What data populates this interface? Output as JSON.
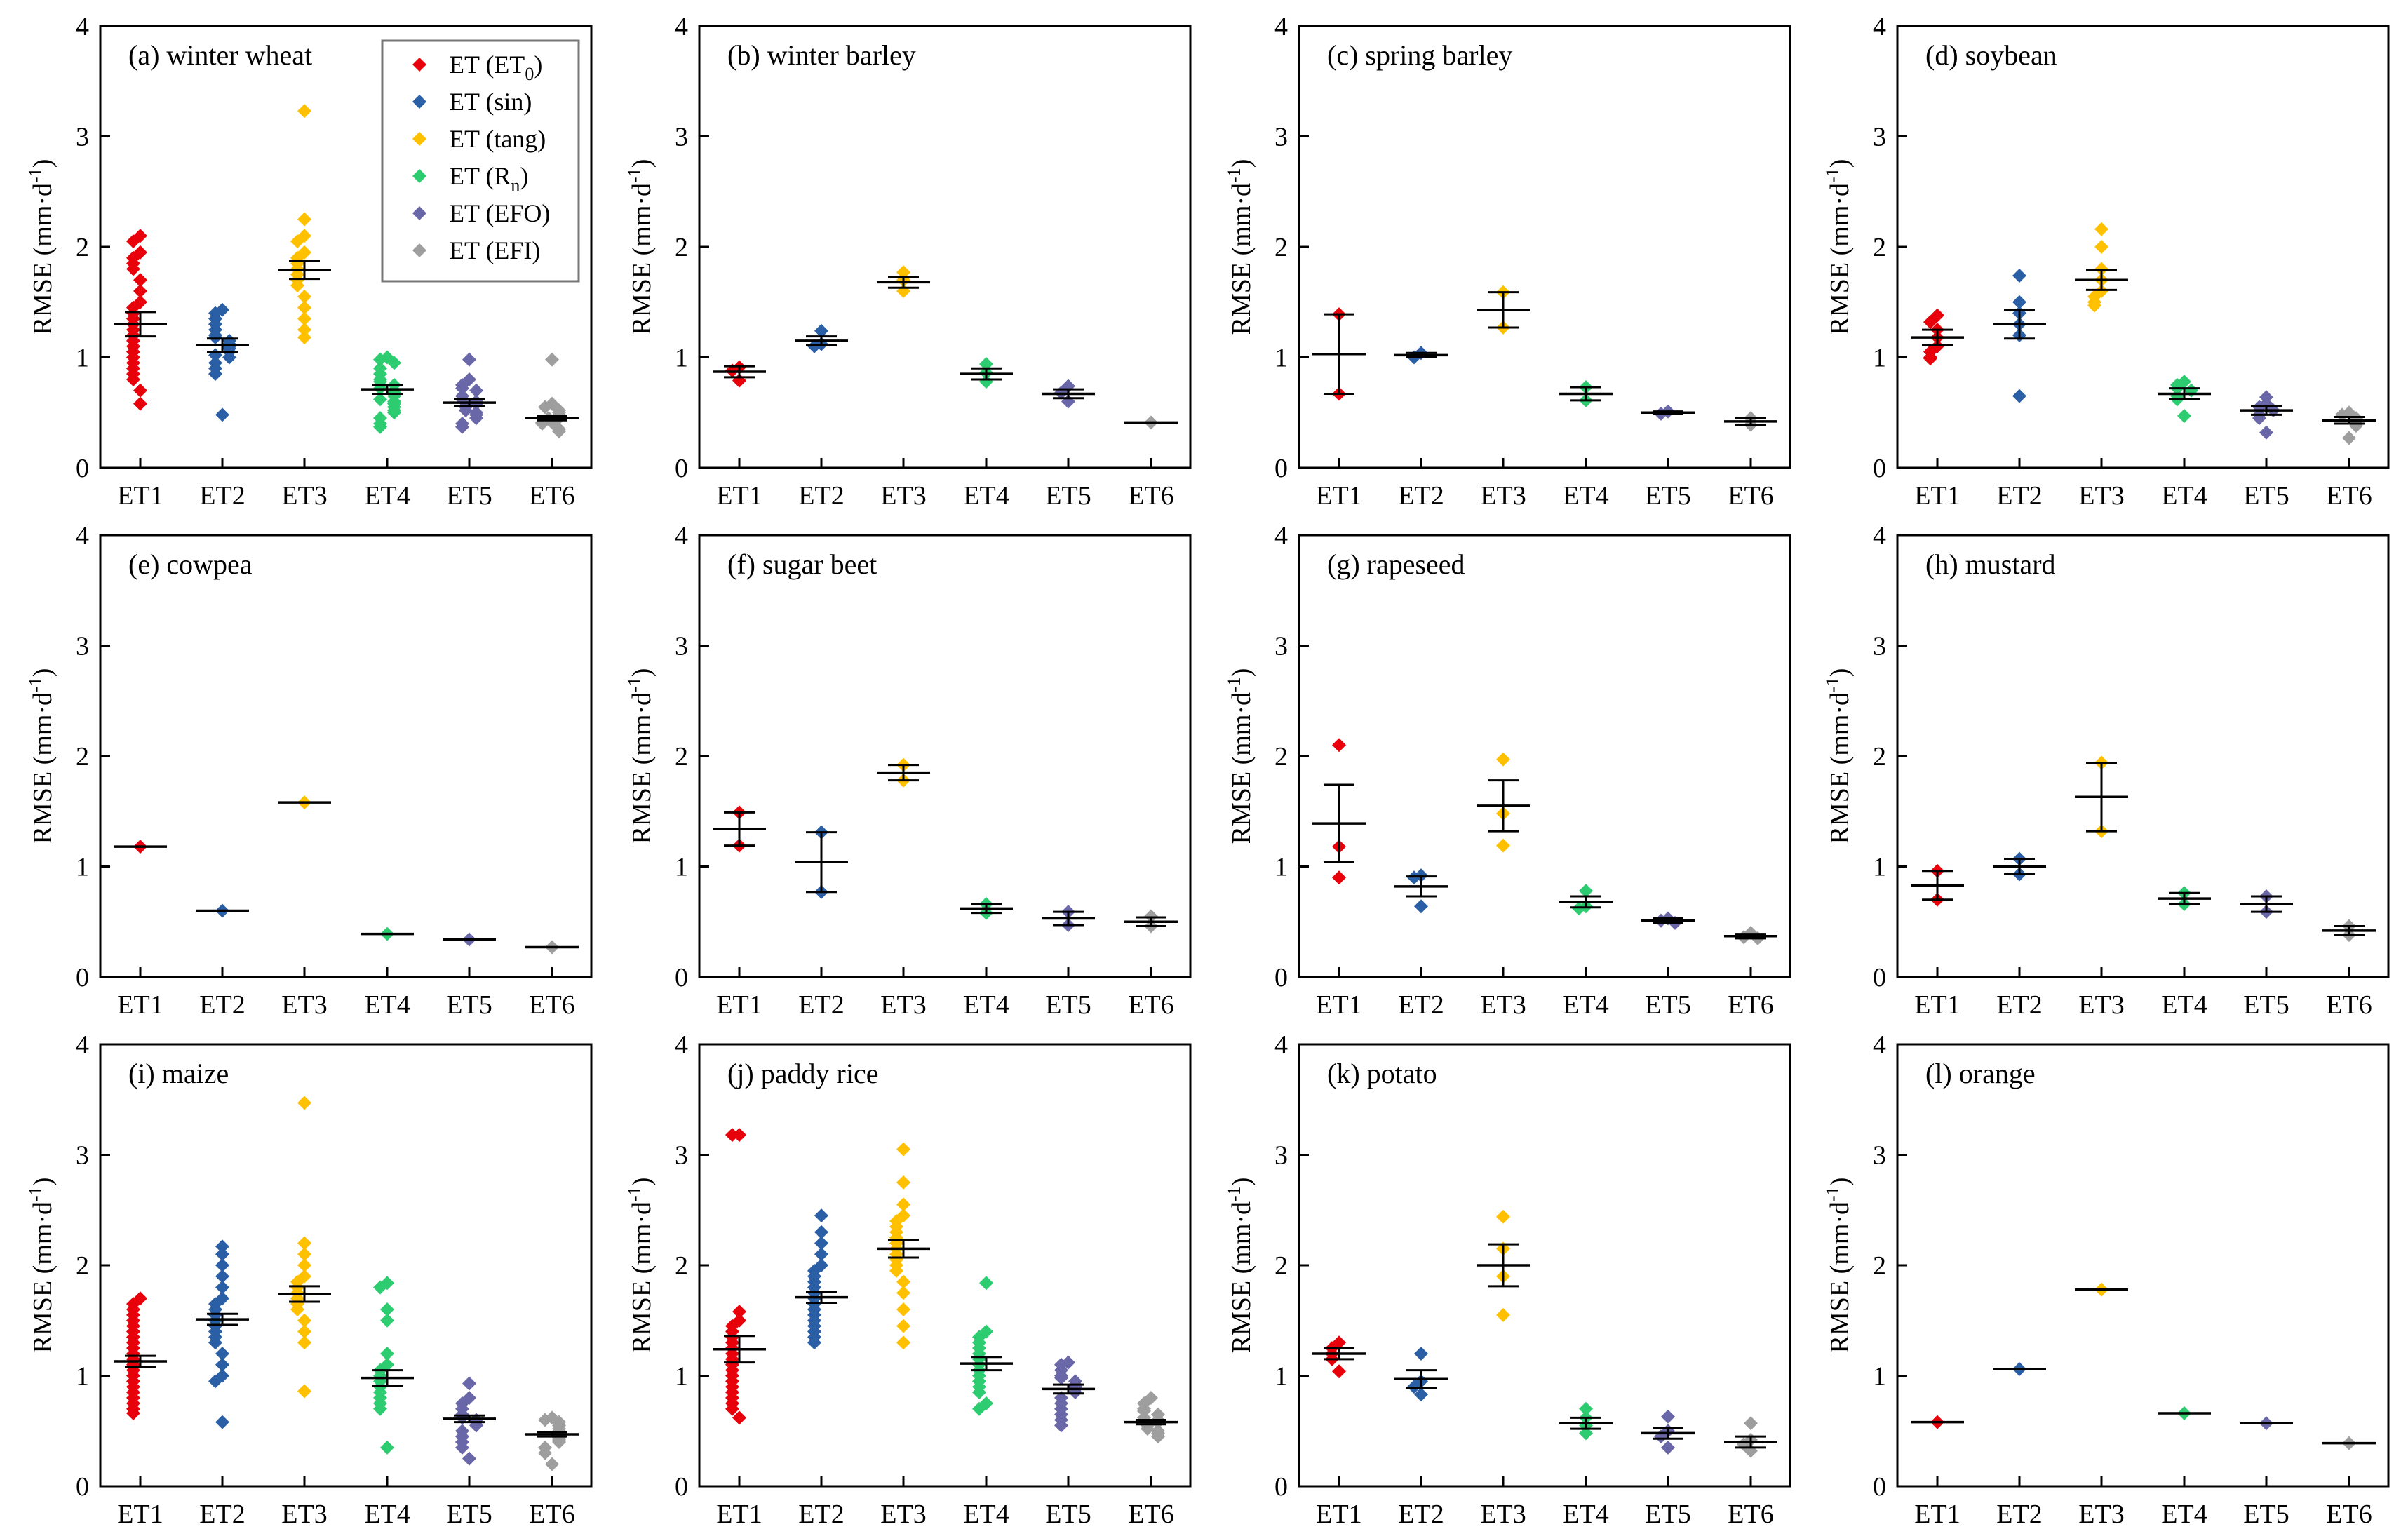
{
  "figure": {
    "ylabel": "RMSE (mm·d",
    "ylabel_sup": "-1",
    "ylabel_end": ")",
    "yticks": [
      "0",
      "1",
      "2",
      "3",
      "4"
    ],
    "categories": [
      "ET1",
      "ET2",
      "ET3",
      "ET4",
      "ET5",
      "ET6"
    ]
  },
  "legend": {
    "items": [
      {
        "label": "ET (ET",
        "sub": "0",
        "tail": ")",
        "color": "#e8000b"
      },
      {
        "label": "ET (sin)",
        "sub": "",
        "tail": "",
        "color": "#2a5fa5"
      },
      {
        "label": "ET (tang)",
        "sub": "",
        "tail": "",
        "color": "#ffc000"
      },
      {
        "label": "ET (R",
        "sub": "n",
        "tail": ")",
        "color": "#2ecc71"
      },
      {
        "label": "ET (EFO)",
        "sub": "",
        "tail": "",
        "color": "#6a67a8"
      },
      {
        "label": "ET (EFI)",
        "sub": "",
        "tail": "",
        "color": "#9e9e9e"
      }
    ]
  },
  "chart_data": [
    {
      "type": "scatter",
      "title": "(a) winter wheat",
      "ylim": [
        0,
        4
      ],
      "series": [
        {
          "name": "ET1",
          "mean": 1.3,
          "se": 0.11,
          "values": [
            2.1,
            2.05,
            1.95,
            1.9,
            1.85,
            1.8,
            1.7,
            1.6,
            1.5,
            1.45,
            1.4,
            1.35,
            1.3,
            1.25,
            1.2,
            1.15,
            1.1,
            1.05,
            1.0,
            0.95,
            0.9,
            0.85,
            0.8,
            0.7,
            0.58
          ]
        },
        {
          "name": "ET2",
          "mean": 1.11,
          "se": 0.06,
          "values": [
            1.43,
            1.4,
            1.35,
            1.3,
            1.25,
            1.2,
            1.18,
            1.15,
            1.12,
            1.1,
            1.08,
            1.05,
            1.02,
            1.0,
            0.95,
            0.9,
            0.85,
            0.48
          ]
        },
        {
          "name": "ET3",
          "mean": 1.79,
          "se": 0.08,
          "values": [
            3.23,
            2.25,
            2.1,
            2.05,
            1.95,
            1.9,
            1.85,
            1.8,
            1.75,
            1.7,
            1.65,
            1.55,
            1.45,
            1.35,
            1.25,
            1.18
          ]
        },
        {
          "name": "ET4",
          "mean": 0.71,
          "se": 0.04,
          "values": [
            1.0,
            0.98,
            0.95,
            0.9,
            0.85,
            0.8,
            0.78,
            0.75,
            0.72,
            0.7,
            0.68,
            0.65,
            0.62,
            0.6,
            0.58,
            0.55,
            0.52,
            0.5,
            0.45,
            0.4,
            0.37
          ]
        },
        {
          "name": "ET5",
          "mean": 0.59,
          "se": 0.03,
          "values": [
            0.98,
            0.8,
            0.75,
            0.72,
            0.7,
            0.65,
            0.62,
            0.6,
            0.58,
            0.56,
            0.55,
            0.52,
            0.5,
            0.48,
            0.45,
            0.4,
            0.37
          ]
        },
        {
          "name": "ET6",
          "mean": 0.45,
          "se": 0.02,
          "values": [
            0.98,
            0.58,
            0.55,
            0.52,
            0.5,
            0.48,
            0.46,
            0.45,
            0.44,
            0.43,
            0.42,
            0.41,
            0.4,
            0.38,
            0.35,
            0.33
          ]
        }
      ]
    },
    {
      "type": "scatter",
      "title": "(b) winter barley",
      "ylim": [
        0,
        4
      ],
      "series": [
        {
          "name": "ET1",
          "mean": 0.87,
          "se": 0.05,
          "values": [
            0.91,
            0.88,
            0.79
          ]
        },
        {
          "name": "ET2",
          "mean": 1.15,
          "se": 0.04,
          "values": [
            1.24,
            1.12,
            1.1
          ]
        },
        {
          "name": "ET3",
          "mean": 1.68,
          "se": 0.05,
          "values": [
            1.77,
            1.7,
            1.6
          ]
        },
        {
          "name": "ET4",
          "mean": 0.85,
          "se": 0.05,
          "values": [
            0.94,
            0.86,
            0.78
          ]
        },
        {
          "name": "ET5",
          "mean": 0.67,
          "se": 0.04,
          "values": [
            0.74,
            0.68,
            0.6
          ]
        },
        {
          "name": "ET6",
          "mean": 0.41,
          "se": 0.0,
          "values": [
            0.41
          ]
        }
      ]
    },
    {
      "type": "scatter",
      "title": "(c) spring barley",
      "ylim": [
        0,
        4
      ],
      "series": [
        {
          "name": "ET1",
          "mean": 1.03,
          "se": 0.36,
          "values": [
            1.39,
            0.67
          ]
        },
        {
          "name": "ET2",
          "mean": 1.02,
          "se": 0.02,
          "values": [
            1.04,
            1.0
          ]
        },
        {
          "name": "ET3",
          "mean": 1.43,
          "se": 0.16,
          "values": [
            1.59,
            1.27
          ]
        },
        {
          "name": "ET4",
          "mean": 0.67,
          "se": 0.06,
          "values": [
            0.73,
            0.61
          ]
        },
        {
          "name": "ET5",
          "mean": 0.5,
          "se": 0.01,
          "values": [
            0.51,
            0.49
          ]
        },
        {
          "name": "ET6",
          "mean": 0.42,
          "se": 0.03,
          "values": [
            0.45,
            0.39
          ]
        }
      ]
    },
    {
      "type": "scatter",
      "title": "(d) soybean",
      "ylim": [
        0,
        4
      ],
      "series": [
        {
          "name": "ET1",
          "mean": 1.18,
          "se": 0.07,
          "values": [
            1.38,
            1.32,
            1.25,
            1.18,
            1.1,
            1.05,
            1.0,
            0.99
          ]
        },
        {
          "name": "ET2",
          "mean": 1.3,
          "se": 0.13,
          "values": [
            1.74,
            1.5,
            1.4,
            1.3,
            1.2,
            0.65
          ]
        },
        {
          "name": "ET3",
          "mean": 1.7,
          "se": 0.09,
          "values": [
            2.16,
            2.0,
            1.8,
            1.7,
            1.6,
            1.55,
            1.5,
            1.47
          ]
        },
        {
          "name": "ET4",
          "mean": 0.67,
          "se": 0.05,
          "values": [
            0.78,
            0.75,
            0.72,
            0.7,
            0.65,
            0.62,
            0.47
          ]
        },
        {
          "name": "ET5",
          "mean": 0.52,
          "se": 0.04,
          "values": [
            0.64,
            0.58,
            0.55,
            0.52,
            0.48,
            0.45,
            0.32
          ]
        },
        {
          "name": "ET6",
          "mean": 0.43,
          "se": 0.03,
          "values": [
            0.5,
            0.48,
            0.45,
            0.43,
            0.4,
            0.38,
            0.27
          ]
        }
      ]
    },
    {
      "type": "scatter",
      "title": "(e) cowpea",
      "ylim": [
        0,
        4
      ],
      "series": [
        {
          "name": "ET1",
          "mean": 1.18,
          "se": 0.0,
          "values": [
            1.18
          ]
        },
        {
          "name": "ET2",
          "mean": 0.6,
          "se": 0.0,
          "values": [
            0.6
          ]
        },
        {
          "name": "ET3",
          "mean": 1.58,
          "se": 0.0,
          "values": [
            1.58
          ]
        },
        {
          "name": "ET4",
          "mean": 0.39,
          "se": 0.0,
          "values": [
            0.39
          ]
        },
        {
          "name": "ET5",
          "mean": 0.34,
          "se": 0.0,
          "values": [
            0.34
          ]
        },
        {
          "name": "ET6",
          "mean": 0.27,
          "se": 0.0,
          "values": [
            0.27
          ]
        }
      ]
    },
    {
      "type": "scatter",
      "title": "(f) sugar beet",
      "ylim": [
        0,
        4
      ],
      "series": [
        {
          "name": "ET1",
          "mean": 1.34,
          "se": 0.15,
          "values": [
            1.49,
            1.19
          ]
        },
        {
          "name": "ET2",
          "mean": 1.04,
          "se": 0.27,
          "values": [
            1.31,
            0.77
          ]
        },
        {
          "name": "ET3",
          "mean": 1.85,
          "se": 0.07,
          "values": [
            1.92,
            1.78
          ]
        },
        {
          "name": "ET4",
          "mean": 0.62,
          "se": 0.04,
          "values": [
            0.66,
            0.58
          ]
        },
        {
          "name": "ET5",
          "mean": 0.53,
          "se": 0.06,
          "values": [
            0.59,
            0.47
          ]
        },
        {
          "name": "ET6",
          "mean": 0.5,
          "se": 0.04,
          "values": [
            0.55,
            0.46
          ]
        }
      ]
    },
    {
      "type": "scatter",
      "title": "(g) rapeseed",
      "ylim": [
        0,
        4
      ],
      "series": [
        {
          "name": "ET1",
          "mean": 1.39,
          "se": 0.35,
          "values": [
            2.1,
            1.18,
            0.9
          ]
        },
        {
          "name": "ET2",
          "mean": 0.82,
          "se": 0.09,
          "values": [
            0.92,
            0.9,
            0.64
          ]
        },
        {
          "name": "ET3",
          "mean": 1.55,
          "se": 0.23,
          "values": [
            1.97,
            1.48,
            1.19
          ]
        },
        {
          "name": "ET4",
          "mean": 0.68,
          "se": 0.05,
          "values": [
            0.78,
            0.64,
            0.62
          ]
        },
        {
          "name": "ET5",
          "mean": 0.51,
          "se": 0.02,
          "values": [
            0.53,
            0.51,
            0.49
          ]
        },
        {
          "name": "ET6",
          "mean": 0.37,
          "se": 0.02,
          "values": [
            0.4,
            0.36,
            0.35
          ]
        }
      ]
    },
    {
      "type": "scatter",
      "title": "(h) mustard",
      "ylim": [
        0,
        4
      ],
      "series": [
        {
          "name": "ET1",
          "mean": 0.83,
          "se": 0.13,
          "values": [
            0.96,
            0.7
          ]
        },
        {
          "name": "ET2",
          "mean": 1.0,
          "se": 0.07,
          "values": [
            1.07,
            0.93
          ]
        },
        {
          "name": "ET3",
          "mean": 1.63,
          "se": 0.31,
          "values": [
            1.94,
            1.32
          ]
        },
        {
          "name": "ET4",
          "mean": 0.71,
          "se": 0.05,
          "values": [
            0.76,
            0.66
          ]
        },
        {
          "name": "ET5",
          "mean": 0.66,
          "se": 0.07,
          "values": [
            0.73,
            0.59
          ]
        },
        {
          "name": "ET6",
          "mean": 0.42,
          "se": 0.04,
          "values": [
            0.46,
            0.38
          ]
        }
      ]
    },
    {
      "type": "scatter",
      "title": "(i) maize",
      "ylim": [
        0,
        4
      ],
      "series": [
        {
          "name": "ET1",
          "mean": 1.13,
          "se": 0.05,
          "values": [
            1.7,
            1.65,
            1.6,
            1.55,
            1.5,
            1.45,
            1.4,
            1.35,
            1.3,
            1.25,
            1.2,
            1.15,
            1.1,
            1.05,
            1.0,
            0.95,
            0.9,
            0.85,
            0.8,
            0.75,
            0.7,
            0.66
          ]
        },
        {
          "name": "ET2",
          "mean": 1.51,
          "se": 0.05,
          "values": [
            2.17,
            2.1,
            2.0,
            1.9,
            1.8,
            1.7,
            1.65,
            1.6,
            1.55,
            1.5,
            1.45,
            1.4,
            1.35,
            1.3,
            1.2,
            1.1,
            1.0,
            0.95,
            0.58
          ]
        },
        {
          "name": "ET3",
          "mean": 1.74,
          "se": 0.07,
          "values": [
            3.47,
            2.2,
            2.1,
            2.0,
            1.9,
            1.85,
            1.8,
            1.75,
            1.7,
            1.65,
            1.6,
            1.5,
            1.4,
            1.3,
            0.86
          ]
        },
        {
          "name": "ET4",
          "mean": 0.98,
          "se": 0.07,
          "values": [
            1.84,
            1.8,
            1.6,
            1.5,
            1.2,
            1.1,
            1.05,
            1.0,
            0.95,
            0.9,
            0.85,
            0.8,
            0.75,
            0.7,
            0.35
          ]
        },
        {
          "name": "ET5",
          "mean": 0.61,
          "se": 0.03,
          "values": [
            0.93,
            0.8,
            0.75,
            0.7,
            0.65,
            0.62,
            0.6,
            0.58,
            0.55,
            0.5,
            0.45,
            0.4,
            0.35,
            0.25
          ]
        },
        {
          "name": "ET6",
          "mean": 0.47,
          "se": 0.02,
          "values": [
            0.62,
            0.6,
            0.58,
            0.55,
            0.52,
            0.5,
            0.48,
            0.46,
            0.44,
            0.42,
            0.4,
            0.35,
            0.3,
            0.2
          ]
        }
      ]
    },
    {
      "type": "scatter",
      "title": "(j) paddy rice",
      "ylim": [
        0,
        4
      ],
      "series": [
        {
          "name": "ET1",
          "mean": 1.24,
          "se": 0.12,
          "values": [
            3.18,
            3.18,
            1.58,
            1.5,
            1.45,
            1.4,
            1.35,
            1.3,
            1.25,
            1.2,
            1.15,
            1.1,
            1.05,
            1.0,
            0.95,
            0.9,
            0.85,
            0.8,
            0.75,
            0.7,
            0.62
          ]
        },
        {
          "name": "ET2",
          "mean": 1.71,
          "se": 0.05,
          "values": [
            2.45,
            2.3,
            2.2,
            2.1,
            2.0,
            1.95,
            1.9,
            1.85,
            1.8,
            1.75,
            1.7,
            1.65,
            1.6,
            1.55,
            1.5,
            1.45,
            1.4,
            1.35,
            1.3
          ]
        },
        {
          "name": "ET3",
          "mean": 2.15,
          "se": 0.08,
          "values": [
            3.05,
            2.75,
            2.55,
            2.45,
            2.4,
            2.35,
            2.3,
            2.25,
            2.2,
            2.15,
            2.1,
            2.05,
            2.0,
            1.95,
            1.85,
            1.75,
            1.6,
            1.45,
            1.3
          ]
        },
        {
          "name": "ET4",
          "mean": 1.11,
          "se": 0.06,
          "values": [
            1.84,
            1.4,
            1.35,
            1.3,
            1.25,
            1.2,
            1.15,
            1.1,
            1.05,
            1.0,
            0.95,
            0.9,
            0.85,
            0.75,
            0.7
          ]
        },
        {
          "name": "ET5",
          "mean": 0.88,
          "se": 0.04,
          "values": [
            1.12,
            1.1,
            1.05,
            1.0,
            0.98,
            0.95,
            0.92,
            0.9,
            0.88,
            0.85,
            0.8,
            0.75,
            0.7,
            0.65,
            0.6,
            0.55
          ]
        },
        {
          "name": "ET6",
          "mean": 0.58,
          "se": 0.02,
          "values": [
            0.8,
            0.75,
            0.7,
            0.68,
            0.65,
            0.62,
            0.6,
            0.58,
            0.56,
            0.55,
            0.52,
            0.5,
            0.48,
            0.45
          ]
        }
      ]
    },
    {
      "type": "scatter",
      "title": "(k) potato",
      "ylim": [
        0,
        4
      ],
      "series": [
        {
          "name": "ET1",
          "mean": 1.2,
          "se": 0.05,
          "values": [
            1.3,
            1.25,
            1.2,
            1.15,
            1.04
          ]
        },
        {
          "name": "ET2",
          "mean": 0.97,
          "se": 0.08,
          "values": [
            1.2,
            0.95,
            0.9,
            0.83
          ]
        },
        {
          "name": "ET3",
          "mean": 2.0,
          "se": 0.19,
          "values": [
            2.44,
            2.15,
            1.9,
            1.55
          ]
        },
        {
          "name": "ET4",
          "mean": 0.57,
          "se": 0.05,
          "values": [
            0.7,
            0.62,
            0.55,
            0.48
          ]
        },
        {
          "name": "ET5",
          "mean": 0.48,
          "se": 0.05,
          "values": [
            0.63,
            0.5,
            0.45,
            0.35
          ]
        },
        {
          "name": "ET6",
          "mean": 0.4,
          "se": 0.05,
          "values": [
            0.57,
            0.42,
            0.38,
            0.32
          ]
        }
      ]
    },
    {
      "type": "scatter",
      "title": "(l) orange",
      "ylim": [
        0,
        4
      ],
      "series": [
        {
          "name": "ET1",
          "mean": 0.58,
          "se": 0.0,
          "values": [
            0.58
          ]
        },
        {
          "name": "ET2",
          "mean": 1.06,
          "se": 0.0,
          "values": [
            1.06
          ]
        },
        {
          "name": "ET3",
          "mean": 1.78,
          "se": 0.0,
          "values": [
            1.78
          ]
        },
        {
          "name": "ET4",
          "mean": 0.66,
          "se": 0.0,
          "values": [
            0.66
          ]
        },
        {
          "name": "ET5",
          "mean": 0.57,
          "se": 0.0,
          "values": [
            0.57
          ]
        },
        {
          "name": "ET6",
          "mean": 0.39,
          "se": 0.0,
          "values": [
            0.39
          ]
        }
      ]
    }
  ]
}
